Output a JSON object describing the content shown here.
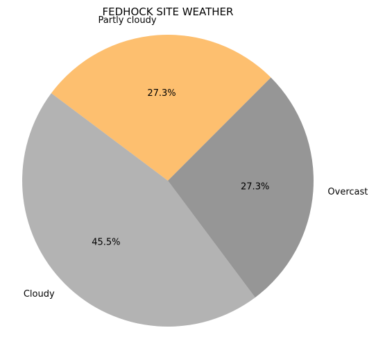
{
  "chart_data": {
    "type": "pie",
    "title": "FEDHOCK SITE WEATHER",
    "categories": [
      "Partly cloudy",
      "Cloudy",
      "Overcast"
    ],
    "values": [
      27.3,
      45.5,
      27.3
    ],
    "percent_labels": [
      "27.3%",
      "45.5%",
      "27.3%"
    ],
    "colors": [
      "#fdbf6f",
      "#b3b3b3",
      "#969696"
    ],
    "start_angle_deg": 45,
    "direction": "counterclockwise",
    "legend": "none"
  }
}
